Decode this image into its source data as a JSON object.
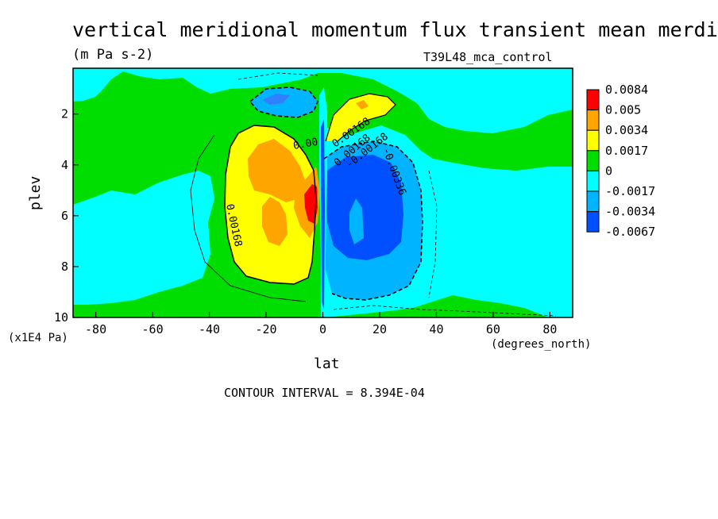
{
  "chart_data": {
    "type": "contour",
    "title": "vertical meridional momentum flux transient mean merdional",
    "units": "(m Pa s-2)",
    "run_label": "T39L48_mca_control",
    "xlabel": "lat",
    "xunits": "(degrees_north)",
    "ylabel": "plev",
    "yunits": "(x1E4 Pa)",
    "xlim": [
      -88,
      88
    ],
    "ylim": [
      10,
      0.2
    ],
    "x_ticks": [
      -80,
      -60,
      -40,
      -20,
      0,
      20,
      40,
      60,
      80
    ],
    "y_ticks": [
      2,
      4,
      6,
      8,
      10
    ],
    "colorbar": {
      "levels": [
        "0.0084",
        "0.005",
        "0.0034",
        "0.0017",
        "0",
        "-0.0017",
        "-0.0034",
        "-0.0067"
      ],
      "colors": [
        "#ff0000",
        "#ffa500",
        "#ffff00",
        "#00dd00",
        "#00ffff",
        "#00b4ff",
        "#0050ff"
      ]
    },
    "contour_labels": [
      "0.00168",
      "0.00168",
      "0.00",
      "0.00168",
      "-0.00168",
      "-0.00336"
    ],
    "contour_interval": "CONTOUR INTERVAL = 8.394E-04"
  }
}
